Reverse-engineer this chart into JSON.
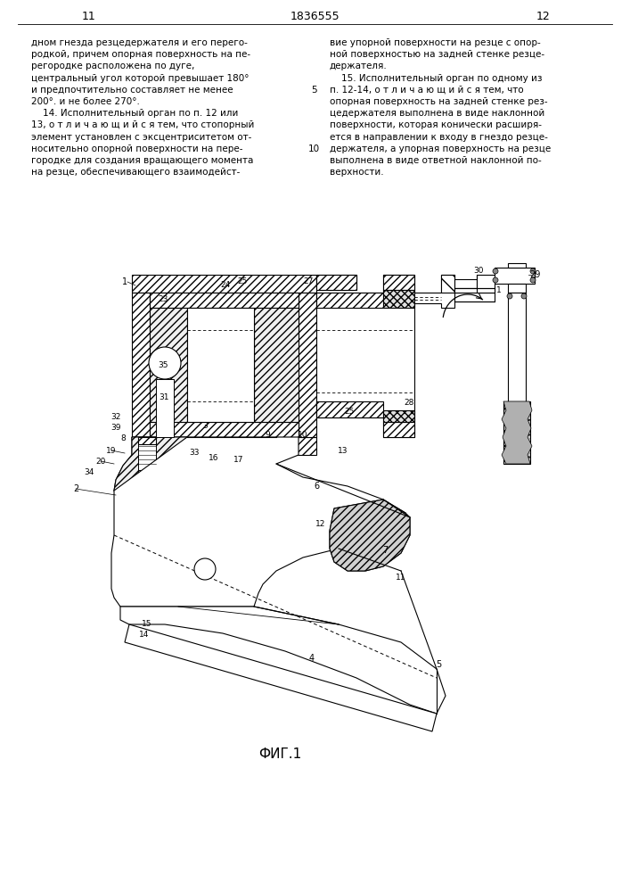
{
  "page_number_left": "11",
  "patent_number": "1836555",
  "page_number_right": "12",
  "text_left": [
    "дном гнезда резцедержателя и его перего-",
    "родкой, причем опорная поверхность на пе-",
    "регородке расположена по дуге,",
    "центральный угол которой превышает 180°",
    "и предпочтительно составляет не менее",
    "200°. и не более 270°.",
    "    14. Исполнительный орган по п. 12 или",
    "13, о т л и ч а ю щ и й с я тем, что стопорный",
    "элемент установлен с эксцентриситетом от-",
    "носительно опорной поверхности на пере-",
    "городке для создания вращающего момента",
    "на резце, обеспечивающего взаимодейст-"
  ],
  "text_right": [
    "вие упорной поверхности на резце с опор-",
    "ной поверхностью на задней стенке резце-",
    "держателя.",
    "    15. Исполнительный орган по одному из",
    "п. 12-14, о т л и ч а ю щ и й с я тем, что",
    "опорная поверхность на задней стенке рез-",
    "цедержателя выполнена в виде наклонной",
    "поверхности, которая конически расширя-",
    "ется в направлении к входу в гнездо резце-",
    "держателя, а упорная поверхность на резце",
    "выполнена в виде ответной наклонной по-",
    "верхности."
  ],
  "figure_label": "ФИГ.1",
  "bg_color": "#ffffff"
}
